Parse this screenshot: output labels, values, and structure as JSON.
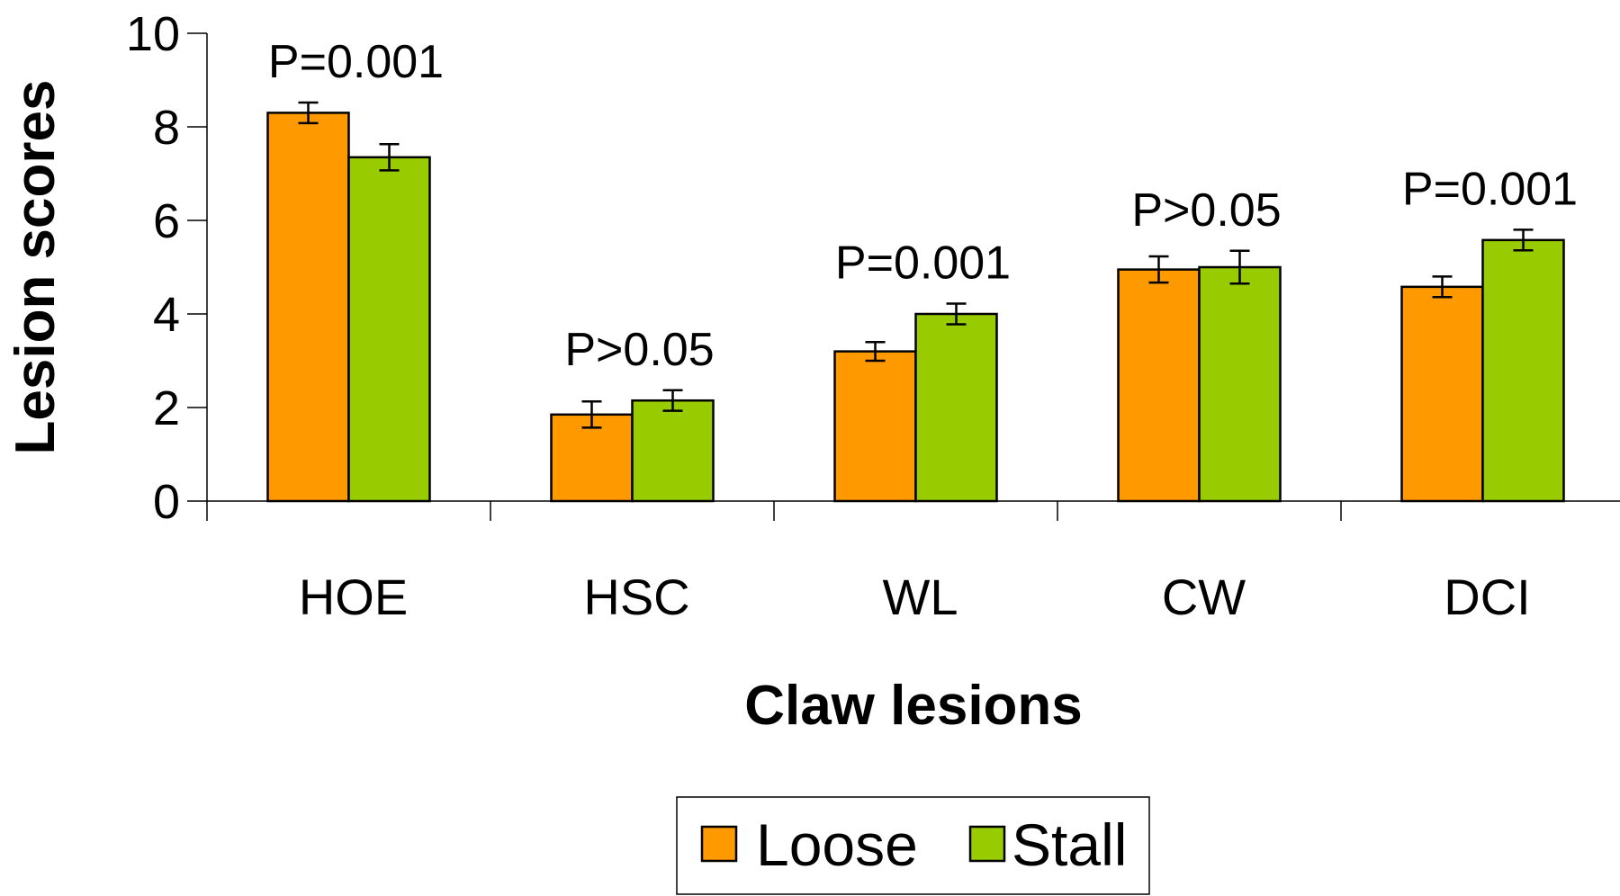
{
  "chart_data": {
    "type": "bar",
    "title": "",
    "xlabel": "Claw lesions",
    "ylabel": "Lesion scores",
    "ylim": [
      0,
      10
    ],
    "yticks": [
      "0",
      "2",
      "4",
      "6",
      "8",
      "10"
    ],
    "categories": [
      "HOE",
      "HSC",
      "WL",
      "CW",
      "DCI"
    ],
    "series": [
      {
        "name": "Loose",
        "color": "#FF9900",
        "values": [
          8.3,
          1.85,
          3.2,
          4.95,
          4.58
        ],
        "errors": [
          0.22,
          0.28,
          0.2,
          0.28,
          0.22
        ]
      },
      {
        "name": "Stall",
        "color": "#99CC00",
        "values": [
          7.35,
          2.15,
          4.0,
          5.0,
          5.58
        ],
        "errors": [
          0.28,
          0.22,
          0.22,
          0.35,
          0.22
        ]
      }
    ],
    "annotations": [
      "P=0.001",
      "P>0.05",
      "P=0.001",
      "P>0.05",
      "P=0.001"
    ],
    "grid": false,
    "legend_position": "bottom"
  }
}
